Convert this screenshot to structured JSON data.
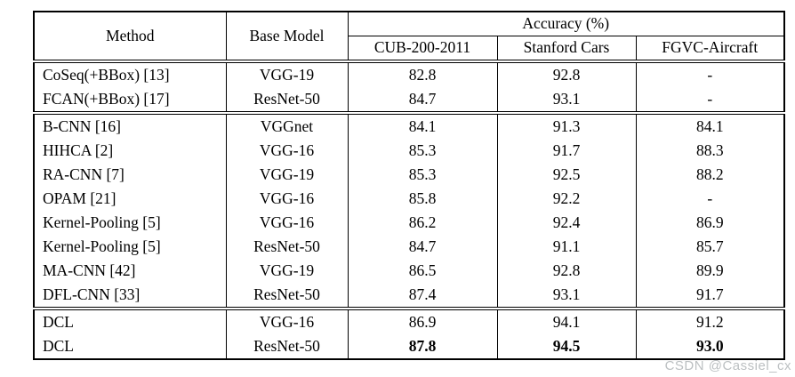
{
  "header": {
    "method": "Method",
    "base_model": "Base Model",
    "accuracy_group": "Accuracy (%)",
    "datasets": [
      "CUB-200-2011",
      "Stanford Cars",
      "FGVC-Aircraft"
    ]
  },
  "rows": [
    {
      "method": "CoSeq(+BBox) [13]",
      "base_model": "VGG-19",
      "cub": "82.8",
      "cars": "92.8",
      "aircraft": "-",
      "bold": false,
      "group": 1
    },
    {
      "method": "FCAN(+BBox) [17]",
      "base_model": "ResNet-50",
      "cub": "84.7",
      "cars": "93.1",
      "aircraft": "-",
      "bold": false,
      "group": 1
    },
    {
      "method": "B-CNN [16]",
      "base_model": "VGGnet",
      "cub": "84.1",
      "cars": "91.3",
      "aircraft": "84.1",
      "bold": false,
      "group": 2
    },
    {
      "method": "HIHCA [2]",
      "base_model": "VGG-16",
      "cub": "85.3",
      "cars": "91.7",
      "aircraft": "88.3",
      "bold": false,
      "group": 2
    },
    {
      "method": "RA-CNN [7]",
      "base_model": "VGG-19",
      "cub": "85.3",
      "cars": "92.5",
      "aircraft": "88.2",
      "bold": false,
      "group": 2
    },
    {
      "method": "OPAM [21]",
      "base_model": "VGG-16",
      "cub": "85.8",
      "cars": "92.2",
      "aircraft": "-",
      "bold": false,
      "group": 2
    },
    {
      "method": "Kernel-Pooling [5]",
      "base_model": "VGG-16",
      "cub": "86.2",
      "cars": "92.4",
      "aircraft": "86.9",
      "bold": false,
      "group": 2
    },
    {
      "method": "Kernel-Pooling [5]",
      "base_model": "ResNet-50",
      "cub": "84.7",
      "cars": "91.1",
      "aircraft": "85.7",
      "bold": false,
      "group": 2
    },
    {
      "method": "MA-CNN [42]",
      "base_model": "VGG-19",
      "cub": "86.5",
      "cars": "92.8",
      "aircraft": "89.9",
      "bold": false,
      "group": 2
    },
    {
      "method": "DFL-CNN [33]",
      "base_model": "ResNet-50",
      "cub": "87.4",
      "cars": "93.1",
      "aircraft": "91.7",
      "bold": false,
      "group": 2
    },
    {
      "method": "DCL",
      "base_model": "VGG-16",
      "cub": "86.9",
      "cars": "94.1",
      "aircraft": "91.2",
      "bold": false,
      "group": 3
    },
    {
      "method": "DCL",
      "base_model": "ResNet-50",
      "cub": "87.8",
      "cars": "94.5",
      "aircraft": "93.0",
      "bold": true,
      "group": 3
    }
  ],
  "watermark": {
    "text": "CSDN @Cassiel_cx",
    "color": "#bcc0c2"
  }
}
